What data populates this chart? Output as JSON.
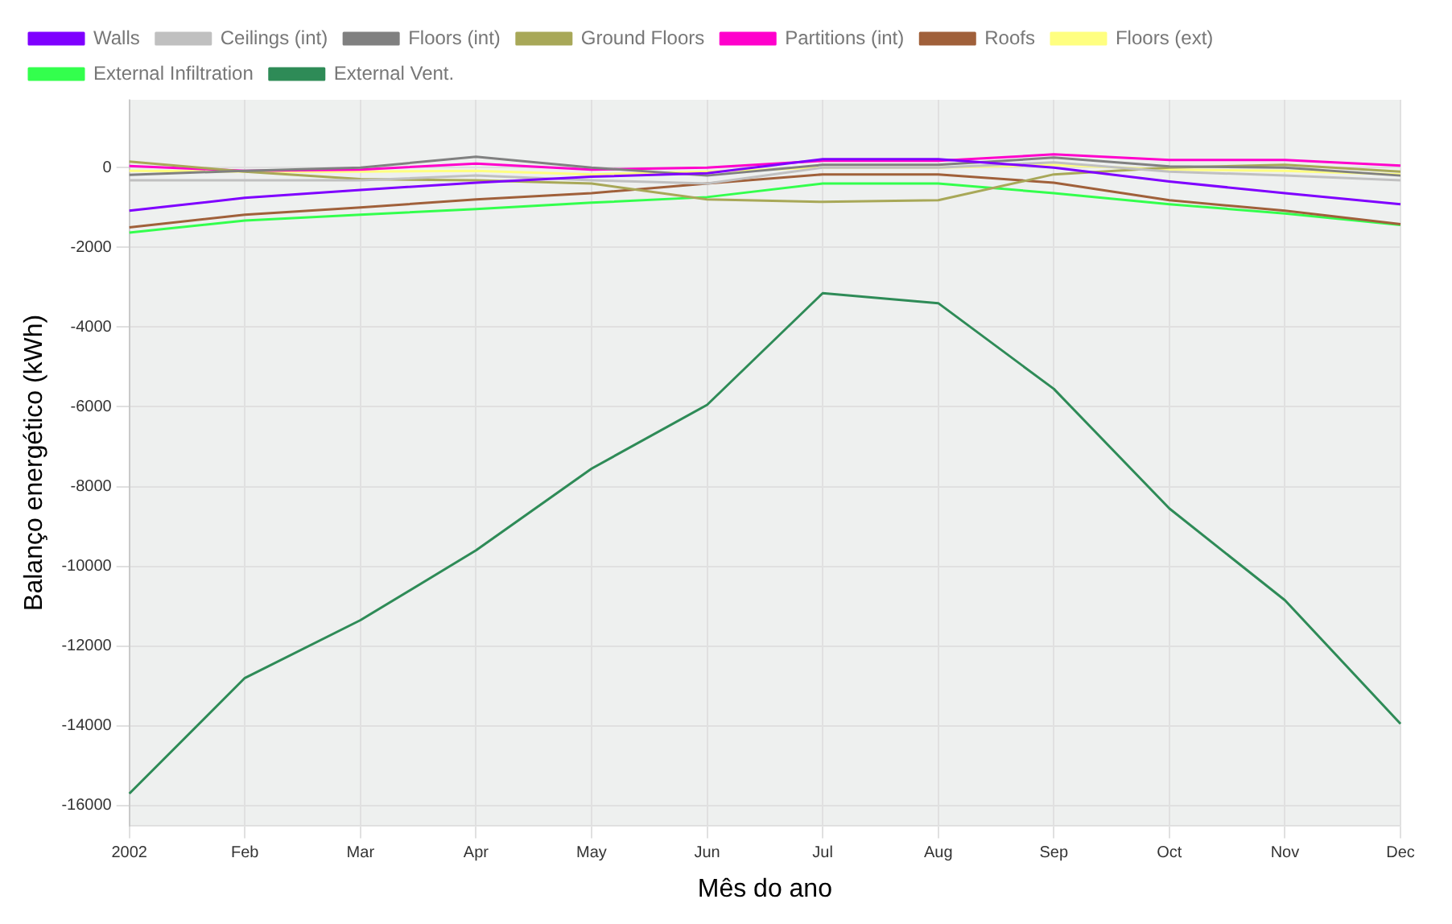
{
  "chart_data": {
    "type": "line",
    "xlabel": "Mês do ano",
    "ylabel": "Balanço energético (kWh)",
    "categories": [
      "2002",
      "Feb",
      "Mar",
      "Apr",
      "May",
      "Jun",
      "Jul",
      "Aug",
      "Sep",
      "Oct",
      "Nov",
      "Dec"
    ],
    "series": [
      {
        "name": "Walls",
        "color": "#7f00ff",
        "values": [
          -1080,
          -760,
          -560,
          -380,
          -230,
          -140,
          210,
          210,
          0,
          -350,
          -640,
          -920
        ]
      },
      {
        "name": "Ceilings (int)",
        "color": "#c0c0c0",
        "values": [
          -320,
          -320,
          -320,
          -200,
          -320,
          -400,
          0,
          0,
          130,
          -100,
          -200,
          -320
        ]
      },
      {
        "name": "Floors (int)",
        "color": "#808080",
        "values": [
          -180,
          -80,
          0,
          270,
          0,
          -200,
          70,
          70,
          250,
          30,
          0,
          -200
        ]
      },
      {
        "name": "Ground Floors",
        "color": "#a8a858",
        "values": [
          150,
          -100,
          -290,
          -320,
          -400,
          -800,
          -860,
          -820,
          -170,
          0,
          70,
          -100
        ]
      },
      {
        "name": "Partitions (int)",
        "color": "#ff00cc",
        "values": [
          40,
          -80,
          -50,
          100,
          -50,
          0,
          170,
          170,
          330,
          190,
          190,
          50
        ]
      },
      {
        "name": "Roofs",
        "color": "#a0603a",
        "values": [
          -1500,
          -1180,
          -1000,
          -800,
          -640,
          -400,
          -170,
          -170,
          -380,
          -820,
          -1080,
          -1420
        ]
      },
      {
        "name": "Floors (ext)",
        "color": "#ffff80",
        "values": [
          -80,
          -100,
          -100,
          -80,
          -170,
          -100,
          0,
          0,
          70,
          -50,
          -80,
          -170
        ]
      },
      {
        "name": "External Infiltration",
        "color": "#33ff4d",
        "values": [
          -1630,
          -1330,
          -1180,
          -1040,
          -880,
          -740,
          -400,
          -400,
          -640,
          -920,
          -1150,
          -1440
        ]
      },
      {
        "name": "External Vent.",
        "color": "#2e8b57",
        "values": [
          -15700,
          -12800,
          -11350,
          -9600,
          -7550,
          -5950,
          -3150,
          -3400,
          -5550,
          -8550,
          -10850,
          -13950
        ]
      }
    ],
    "ylim": [
      -16500,
      1700
    ],
    "yticks": [
      -16000,
      -14000,
      -12000,
      -10000,
      -8000,
      -6000,
      -4000,
      -2000,
      0
    ],
    "grid": true,
    "legend": "top",
    "marker": "none",
    "line_style": "solid"
  }
}
